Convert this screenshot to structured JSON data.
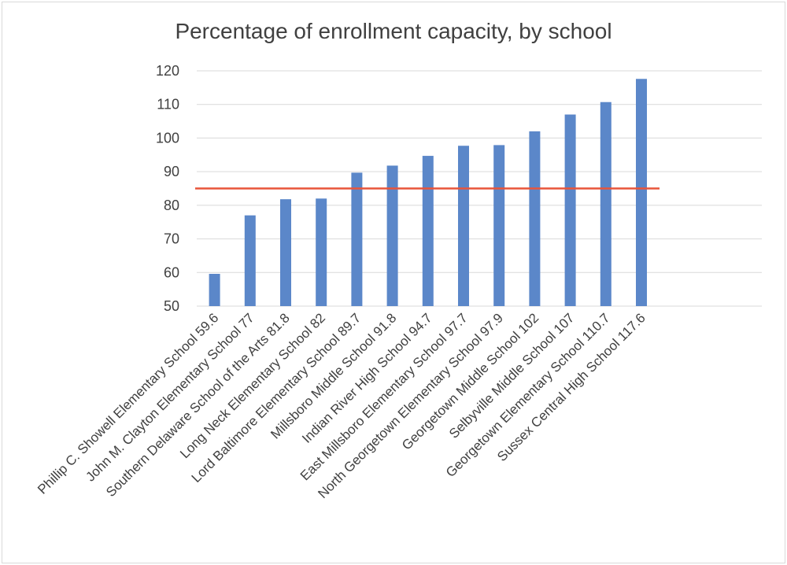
{
  "chart_data": {
    "type": "bar",
    "title": "Percentage of enrollment capacity, by school",
    "xlabel": "",
    "ylabel": "",
    "ylim": [
      50,
      120
    ],
    "yticks": [
      50,
      60,
      70,
      80,
      90,
      100,
      110,
      120
    ],
    "grid": true,
    "reference_line": 85,
    "categories": [
      "Phillip C. Showell Elementary School 59.6",
      "John M. Clayton Elementary School 77",
      "Southern Delaware School of the Arts 81.8",
      "Long Neck Elementary School 82",
      "Lord Baltimore Elementary School 89.7",
      "Millsboro Middle School 91.8",
      "Indian River High School 94.7",
      "East Millsboro Elementary School 97.7",
      "North Georgetown Elementary School 97.9",
      "Georgetown Middle School 102",
      "Selbyville Middle School 107",
      "Georgetown Elementary School 110.7",
      "Sussex Central High School 117.6"
    ],
    "values": [
      59.6,
      77,
      81.8,
      82,
      89.7,
      91.8,
      94.7,
      97.7,
      97.9,
      102,
      107,
      110.7,
      117.6
    ],
    "colors": {
      "bar": "#5B87C9",
      "reference_line": "#E8553A",
      "grid": "#d9d9d9"
    }
  }
}
